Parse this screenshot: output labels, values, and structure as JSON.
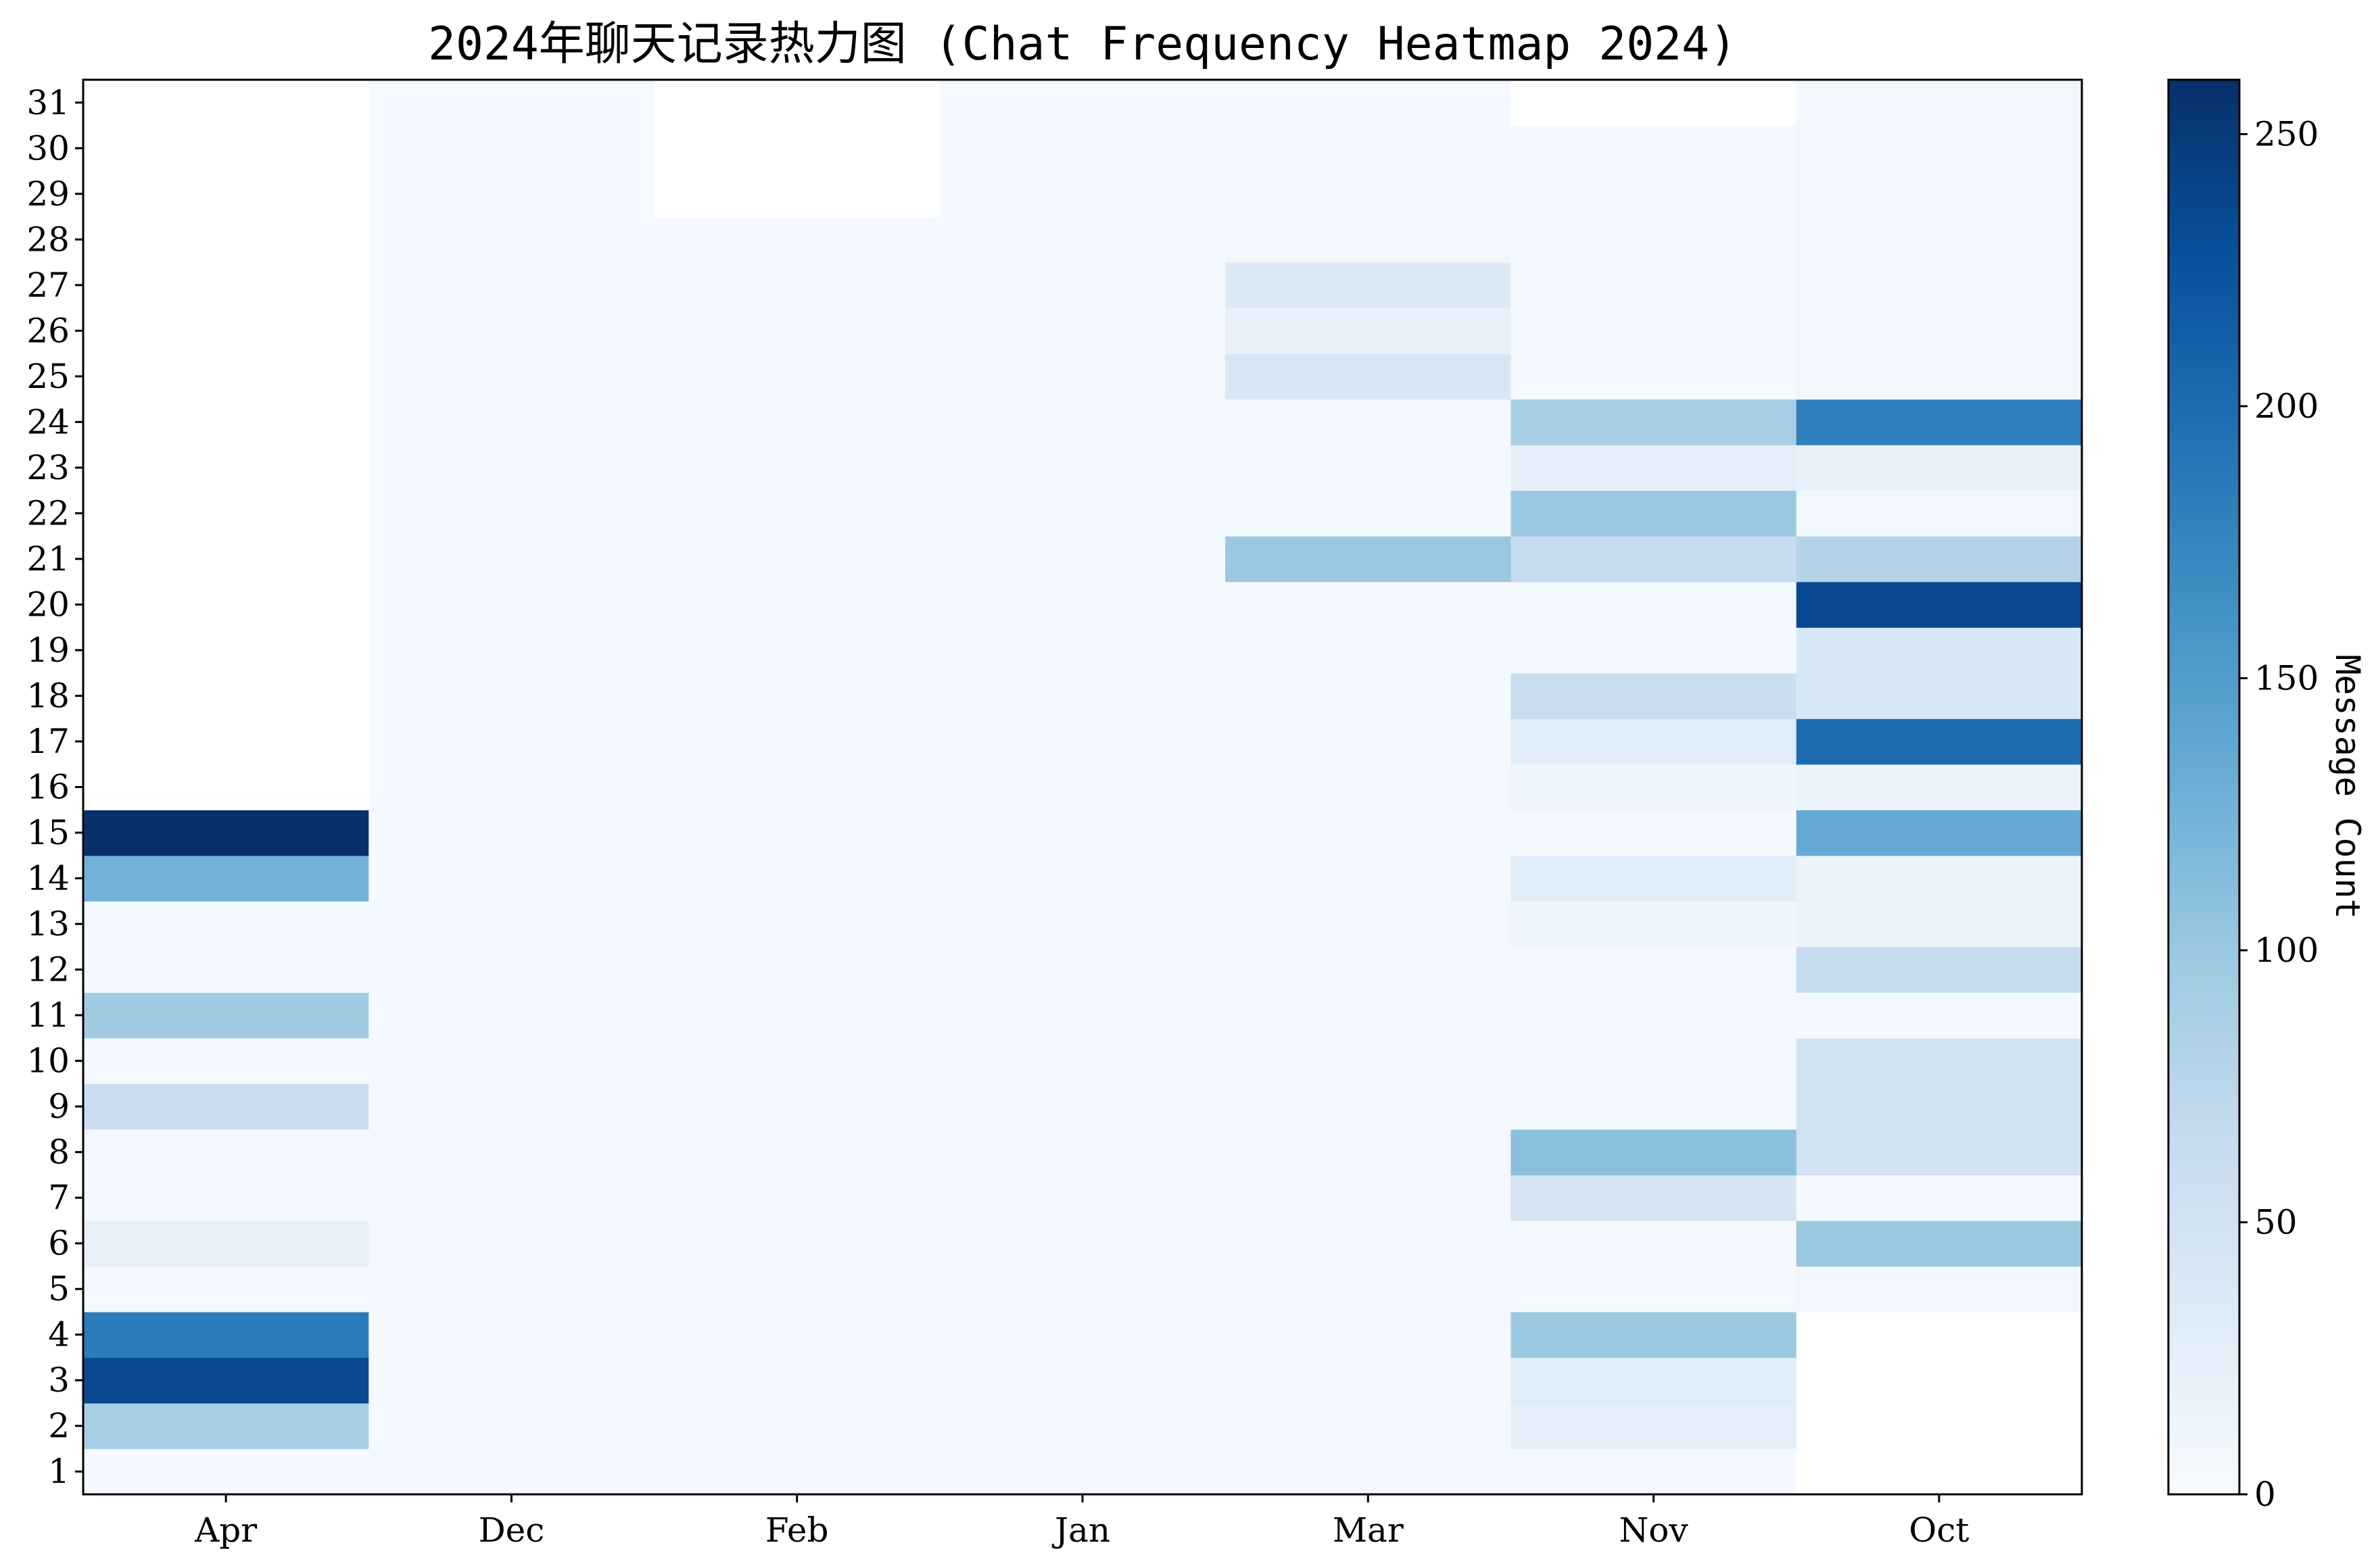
{
  "chart_data": {
    "type": "heatmap",
    "title": "2024年聊天记录热力图 (Chat Frequency Heatmap 2024)",
    "xlabel": "",
    "ylabel": "",
    "colorbar_label": "Message Count",
    "colormap": "Blues",
    "colormap_stops": [
      "#f7fbff",
      "#deebf7",
      "#c6dbef",
      "#9ecae1",
      "#6baed6",
      "#4292c6",
      "#2171b5",
      "#08519c",
      "#08306b"
    ],
    "missing_color": "#ffffff",
    "vmin": 0,
    "vmax": 260,
    "colorbar_ticks": [
      0,
      50,
      100,
      150,
      200,
      250
    ],
    "x_categories": [
      "Apr",
      "Dec",
      "Feb",
      "Jan",
      "Mar",
      "Nov",
      "Oct"
    ],
    "y_categories": [
      1,
      2,
      3,
      4,
      5,
      6,
      7,
      8,
      9,
      10,
      11,
      12,
      13,
      14,
      15,
      16,
      17,
      18,
      19,
      20,
      21,
      22,
      23,
      24,
      25,
      26,
      27,
      28,
      29,
      30,
      31
    ],
    "values": [
      [
        5,
        90,
        235,
        185,
        5,
        20,
        5,
        5,
        60,
        5,
        95,
        5,
        5,
        125,
        260,
        null,
        null,
        null,
        null,
        null,
        null,
        null,
        null,
        null,
        null,
        null,
        null,
        null,
        null,
        null,
        null
      ],
      [
        5,
        5,
        5,
        5,
        5,
        5,
        5,
        5,
        5,
        5,
        5,
        5,
        5,
        5,
        5,
        5,
        5,
        5,
        5,
        5,
        5,
        5,
        5,
        5,
        5,
        5,
        5,
        5,
        5,
        5,
        5
      ],
      [
        5,
        5,
        5,
        5,
        5,
        5,
        5,
        5,
        5,
        5,
        5,
        5,
        5,
        5,
        5,
        5,
        5,
        5,
        5,
        5,
        5,
        5,
        5,
        5,
        5,
        5,
        5,
        5,
        null,
        null,
        null
      ],
      [
        5,
        5,
        5,
        5,
        5,
        5,
        5,
        5,
        5,
        5,
        5,
        5,
        5,
        5,
        5,
        5,
        5,
        5,
        5,
        5,
        5,
        5,
        5,
        5,
        5,
        5,
        5,
        5,
        5,
        5,
        5
      ],
      [
        5,
        5,
        5,
        5,
        5,
        5,
        5,
        5,
        5,
        5,
        5,
        5,
        5,
        5,
        5,
        5,
        5,
        5,
        5,
        5,
        100,
        5,
        5,
        5,
        40,
        20,
        35,
        8,
        5,
        5,
        5
      ],
      [
        5,
        25,
        30,
        100,
        5,
        5,
        45,
        110,
        5,
        5,
        5,
        5,
        12,
        30,
        5,
        12,
        30,
        60,
        5,
        5,
        65,
        100,
        25,
        90,
        5,
        5,
        5,
        5,
        5,
        5,
        null
      ],
      [
        null,
        null,
        null,
        null,
        8,
        100,
        5,
        50,
        50,
        50,
        5,
        65,
        15,
        15,
        135,
        15,
        200,
        40,
        40,
        235,
        80,
        8,
        20,
        180,
        8,
        8,
        8,
        8,
        8,
        8,
        8
      ]
    ]
  }
}
